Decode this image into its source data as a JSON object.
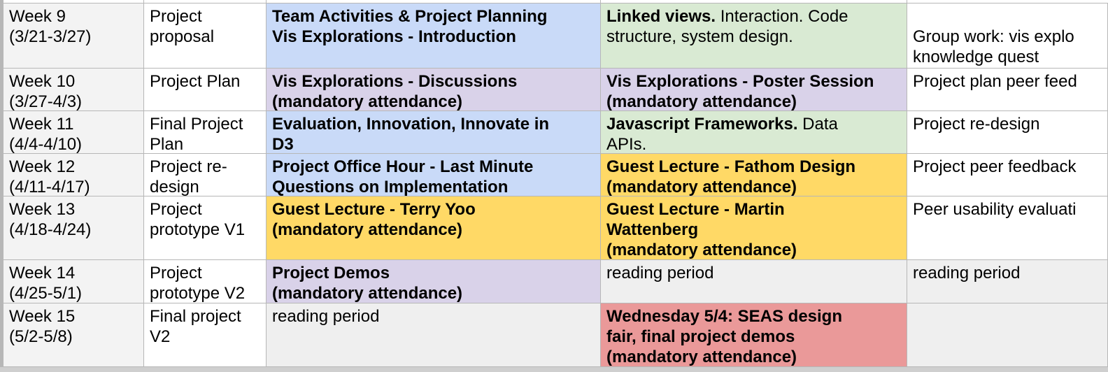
{
  "colors": {
    "blue": "#c9daf8",
    "green": "#d9ead3",
    "purple": "#d9d2e9",
    "yellow": "#ffd966",
    "red": "#ea9999",
    "gray": "#efefef",
    "white": "#ffffff",
    "rowhead": "#f3f3f3"
  },
  "rows": [
    {
      "week": [
        "Week 9",
        "(3/21-3/27)"
      ],
      "project": [
        "Project",
        "proposal"
      ],
      "tue": {
        "bg": "blue",
        "lines": [
          {
            "b": "Team Activities & Project Planning"
          },
          {
            "b": "Vis Explorations - Introduction"
          }
        ]
      },
      "thu": {
        "bg": "green",
        "lines": [
          {
            "b": "Linked views.",
            "t": " Interaction. Code"
          },
          {
            "t": "structure, system design."
          }
        ]
      },
      "sec": {
        "bg": "white",
        "lines": [
          {
            "t": ""
          },
          {
            "t": "Group work: vis explo"
          },
          {
            "t": "knowledge quest"
          }
        ]
      }
    },
    {
      "week": [
        "Week 10",
        "(3/27-4/3)"
      ],
      "project": [
        "Project Plan"
      ],
      "tue": {
        "bg": "purple",
        "lines": [
          {
            "b": "Vis Explorations - Discussions"
          },
          {
            "b": "(mandatory attendance)"
          }
        ]
      },
      "thu": {
        "bg": "purple",
        "lines": [
          {
            "b": "Vis Explorations - Poster Session"
          },
          {
            "b": "(mandatory attendance)"
          }
        ]
      },
      "sec": {
        "bg": "white",
        "lines": [
          {
            "t": "Project plan peer feed"
          }
        ]
      }
    },
    {
      "week": [
        "Week 11",
        "(4/4-4/10)"
      ],
      "project": [
        "Final Project",
        "Plan"
      ],
      "tue": {
        "bg": "blue",
        "lines": [
          {
            "b": "Evaluation, Innovation, Innovate in"
          },
          {
            "b": "D3"
          }
        ]
      },
      "thu": {
        "bg": "green",
        "lines": [
          {
            "b": "Javascript Frameworks.",
            "t": " Data"
          },
          {
            "t": "APIs."
          }
        ]
      },
      "sec": {
        "bg": "white",
        "lines": [
          {
            "t": "Project re-design"
          }
        ]
      }
    },
    {
      "week": [
        "Week 12",
        "(4/11-4/17)"
      ],
      "project": [
        "Project re-",
        "design"
      ],
      "tue": {
        "bg": "blue",
        "lines": [
          {
            "b": "Project Office Hour - Last Minute"
          },
          {
            "b": "Questions on Implementation"
          }
        ]
      },
      "thu": {
        "bg": "yellow",
        "lines": [
          {
            "b": "Guest Lecture - Fathom Design"
          },
          {
            "b": "(mandatory attendance)"
          }
        ]
      },
      "sec": {
        "bg": "white",
        "lines": [
          {
            "t": "Project peer feedback"
          }
        ]
      }
    },
    {
      "week": [
        "Week 13",
        "(4/18-4/24)"
      ],
      "project": [
        "Project",
        "prototype V1"
      ],
      "tue": {
        "bg": "yellow",
        "lines": [
          {
            "b": "Guest Lecture - Terry Yoo"
          },
          {
            "b": "(mandatory attendance)"
          }
        ]
      },
      "thu": {
        "bg": "yellow",
        "lines": [
          {
            "b": "Guest Lecture - Martin"
          },
          {
            "b": "Wattenberg"
          },
          {
            "b": "(mandatory attendance)"
          }
        ]
      },
      "sec": {
        "bg": "white",
        "lines": [
          {
            "t": "Peer usability evaluati"
          }
        ]
      }
    },
    {
      "week": [
        "Week 14",
        "(4/25-5/1)"
      ],
      "project": [
        "Project",
        "prototype V2"
      ],
      "tue": {
        "bg": "purple",
        "lines": [
          {
            "b": "Project Demos"
          },
          {
            "b": "(mandatory attendance)"
          }
        ]
      },
      "thu": {
        "bg": "gray",
        "lines": [
          {
            "t": "reading period"
          }
        ]
      },
      "sec": {
        "bg": "gray",
        "lines": [
          {
            "t": "reading period"
          }
        ]
      }
    },
    {
      "week": [
        "Week 15",
        "(5/2-5/8)"
      ],
      "project": [
        "Final project",
        "V2"
      ],
      "tue": {
        "bg": "gray",
        "lines": [
          {
            "t": "reading period"
          }
        ]
      },
      "thu": {
        "bg": "red",
        "lines": [
          {
            "b": "Wednesday 5/4: SEAS design"
          },
          {
            "b": "fair, final project demos"
          },
          {
            "b": "(mandatory attendance)"
          }
        ]
      },
      "sec": {
        "bg": "gray",
        "lines": [
          {
            "t": ""
          }
        ]
      }
    }
  ]
}
